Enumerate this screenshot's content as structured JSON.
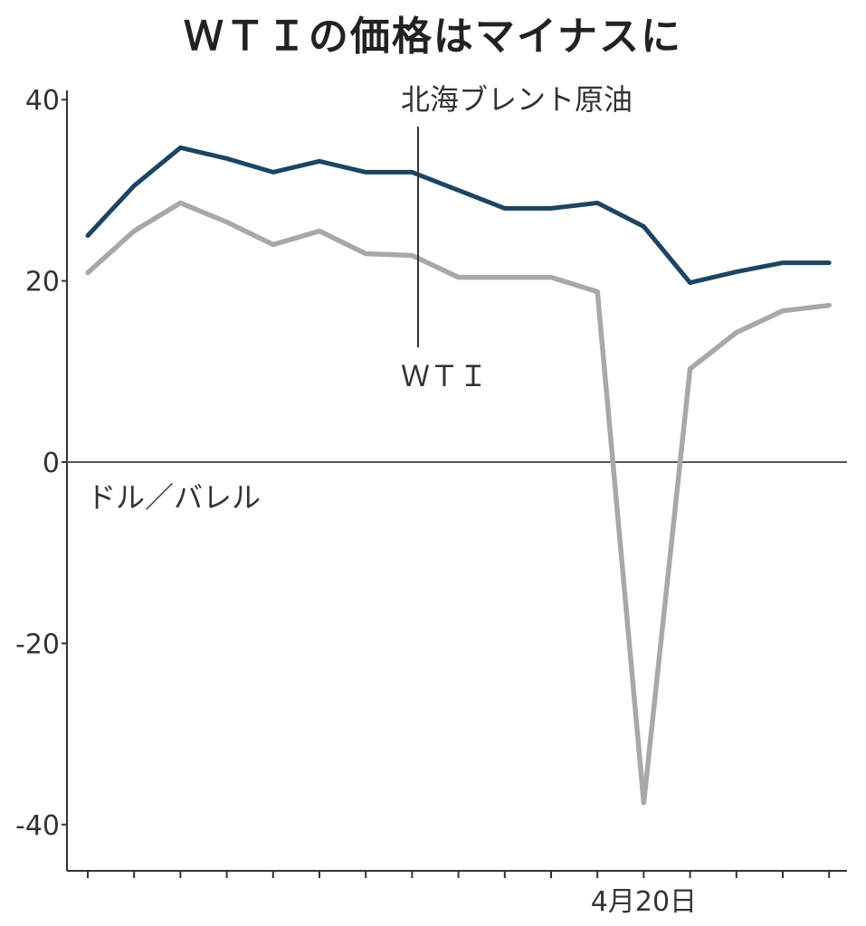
{
  "chart_data": {
    "type": "line",
    "title": "ＷＴＩの価格はマイナスに",
    "unit_label": "ドル／バレル",
    "ylim": [
      -45,
      40
    ],
    "y_ticks": [
      40,
      20,
      0,
      -20,
      -40
    ],
    "y_tick_labels": [
      "40",
      "20",
      "0",
      "-20",
      "-40"
    ],
    "x_tick_count": 17,
    "x": [
      0,
      1,
      2,
      3,
      4,
      5,
      6,
      7,
      8,
      9,
      10,
      11,
      12,
      13,
      14,
      15,
      16
    ],
    "x_labeled_tick": {
      "index": 12,
      "label": "4月20日"
    },
    "series": [
      {
        "name": "北海ブレント原油",
        "color": "#1d4563",
        "values": [
          25,
          30.5,
          34.7,
          33.5,
          32,
          33.2,
          32,
          32,
          30,
          28,
          28,
          28.6,
          26,
          19.8,
          21,
          22,
          22
        ]
      },
      {
        "name": "ＷＴＩ",
        "color": "#a7a8aa",
        "values": [
          20.9,
          25.5,
          28.6,
          26.5,
          24,
          25.5,
          23,
          22.8,
          20.4,
          20.4,
          20.4,
          18.8,
          -37.6,
          10.3,
          14.3,
          16.7,
          17.3
        ]
      }
    ],
    "zero_line": true,
    "grid": false
  }
}
